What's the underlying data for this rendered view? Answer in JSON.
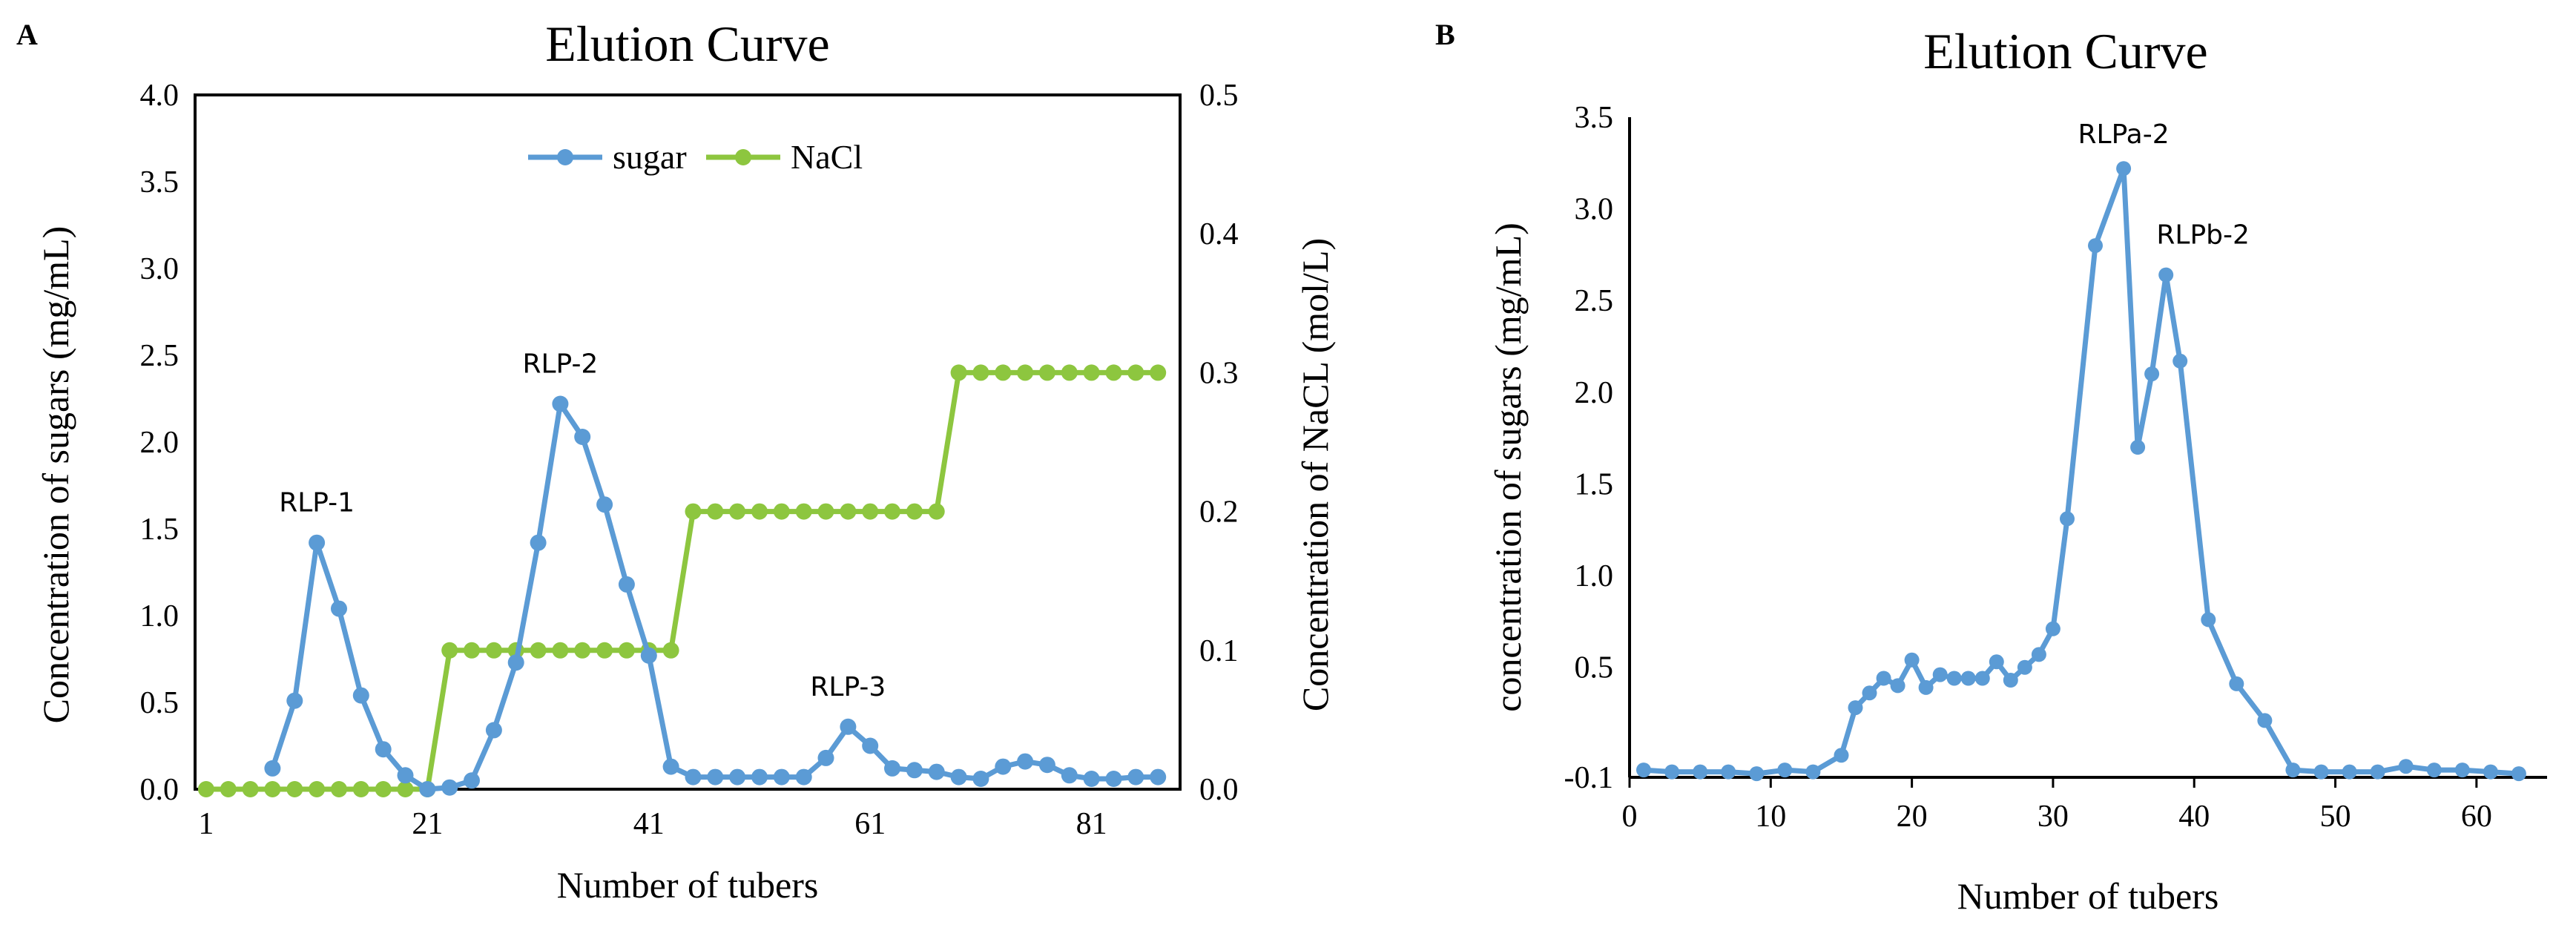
{
  "colors": {
    "sugar": "#5b9bd5",
    "nacl": "#8dc63f",
    "axis": "#000000",
    "background": "#ffffff"
  },
  "chart_data": [
    {
      "panel": "A",
      "type": "line",
      "title": "Elution Curve",
      "xlabel": "Number of tubers",
      "ylabel": "Concentration of sugars (mg/mL)",
      "y2label": "Concentration of  NaCL (mol/L)",
      "xlim": [
        0,
        89
      ],
      "ylim": [
        0,
        4.0
      ],
      "y2lim": [
        0,
        0.5
      ],
      "xticks": [
        "1",
        "21",
        "41",
        "61",
        "81"
      ],
      "yticks": [
        "0.0",
        "0.5",
        "1.0",
        "1.5",
        "2.0",
        "2.5",
        "3.0",
        "3.5",
        "4.0"
      ],
      "y2ticks": [
        "0.0",
        "0.1",
        "0.2",
        "0.3",
        "0.4",
        "0.5"
      ],
      "legend": [
        "sugar",
        "NaCl"
      ],
      "legend_position": "top-center",
      "series": [
        {
          "name": "sugar",
          "axis": "left",
          "x": [
            7,
            9,
            11,
            13,
            15,
            17,
            19,
            21,
            23,
            25,
            27,
            29,
            31,
            33,
            35,
            37,
            39,
            41,
            43,
            45,
            47,
            49,
            51,
            53,
            55,
            57,
            59,
            61,
            63,
            65,
            67,
            69,
            71,
            73,
            75,
            77,
            79,
            81,
            83,
            85,
            87
          ],
          "values": [
            0.12,
            0.51,
            1.42,
            1.04,
            0.54,
            0.23,
            0.08,
            0.0,
            0.01,
            0.05,
            0.34,
            0.73,
            1.42,
            2.22,
            2.03,
            1.64,
            1.18,
            0.77,
            0.13,
            0.07,
            0.07,
            0.07,
            0.07,
            0.07,
            0.07,
            0.18,
            0.36,
            0.25,
            0.12,
            0.11,
            0.1,
            0.07,
            0.06,
            0.13,
            0.16,
            0.14,
            0.08,
            0.06,
            0.06,
            0.07,
            0.07
          ]
        },
        {
          "name": "NaCl",
          "axis": "right",
          "x": [
            1,
            3,
            5,
            7,
            9,
            11,
            13,
            15,
            17,
            19,
            21,
            23,
            25,
            27,
            29,
            31,
            33,
            35,
            37,
            39,
            41,
            43,
            45,
            47,
            49,
            51,
            53,
            55,
            57,
            59,
            61,
            63,
            65,
            67,
            69,
            71,
            73,
            75,
            77,
            79,
            81,
            83,
            85,
            87
          ],
          "values": [
            0.0,
            0.0,
            0.0,
            0.0,
            0.0,
            0.0,
            0.0,
            0.0,
            0.0,
            0.0,
            0.0,
            0.1,
            0.1,
            0.1,
            0.1,
            0.1,
            0.1,
            0.1,
            0.1,
            0.1,
            0.1,
            0.1,
            0.2,
            0.2,
            0.2,
            0.2,
            0.2,
            0.2,
            0.2,
            0.2,
            0.2,
            0.2,
            0.2,
            0.2,
            0.3,
            0.3,
            0.3,
            0.3,
            0.3,
            0.3,
            0.3,
            0.3,
            0.3,
            0.3
          ]
        }
      ],
      "annotations": [
        {
          "text": "RLP-1",
          "x": 11,
          "y": 1.42
        },
        {
          "text": "RLP-2",
          "x": 33,
          "y": 2.22
        },
        {
          "text": "RLP-3",
          "x": 59,
          "y": 0.36
        }
      ]
    },
    {
      "panel": "B",
      "type": "line",
      "title": "Elution Curve",
      "xlabel": "Number of tubers",
      "ylabel": "concentration of sugars (mg/mL)",
      "xlim": [
        0,
        65
      ],
      "ylim": [
        -0.1,
        3.5
      ],
      "xticks": [
        "0",
        "10",
        "20",
        "30",
        "40",
        "50",
        "60"
      ],
      "yticks": [
        "-0.1",
        "0.5",
        "1.0",
        "1.5",
        "2.0",
        "2.5",
        "3.0",
        "3.5"
      ],
      "grid": false,
      "series": [
        {
          "name": "sugar",
          "x": [
            1,
            3,
            5,
            7,
            9,
            11,
            13,
            15,
            16,
            17,
            18,
            19,
            20,
            21,
            22,
            23,
            24,
            25,
            26,
            27,
            28,
            29,
            30,
            31,
            33,
            35,
            36,
            37,
            38,
            39,
            41,
            43,
            45,
            47,
            49,
            51,
            53,
            55,
            57,
            59,
            61,
            63
          ],
          "values": [
            -0.06,
            -0.07,
            -0.07,
            -0.07,
            -0.08,
            -0.06,
            -0.07,
            0.02,
            0.28,
            0.36,
            0.44,
            0.4,
            0.54,
            0.39,
            0.46,
            0.44,
            0.44,
            0.44,
            0.53,
            0.43,
            0.5,
            0.57,
            0.71,
            1.31,
            2.8,
            3.22,
            1.7,
            2.1,
            2.64,
            2.17,
            0.76,
            0.41,
            0.21,
            -0.06,
            -0.07,
            -0.07,
            -0.07,
            -0.04,
            -0.06,
            -0.06,
            -0.07,
            -0.08
          ]
        }
      ],
      "annotations": [
        {
          "text": "RLPa-2",
          "x": 35,
          "y": 3.22
        },
        {
          "text": "RLPb-2",
          "x": 38,
          "y": 2.64
        }
      ]
    }
  ]
}
